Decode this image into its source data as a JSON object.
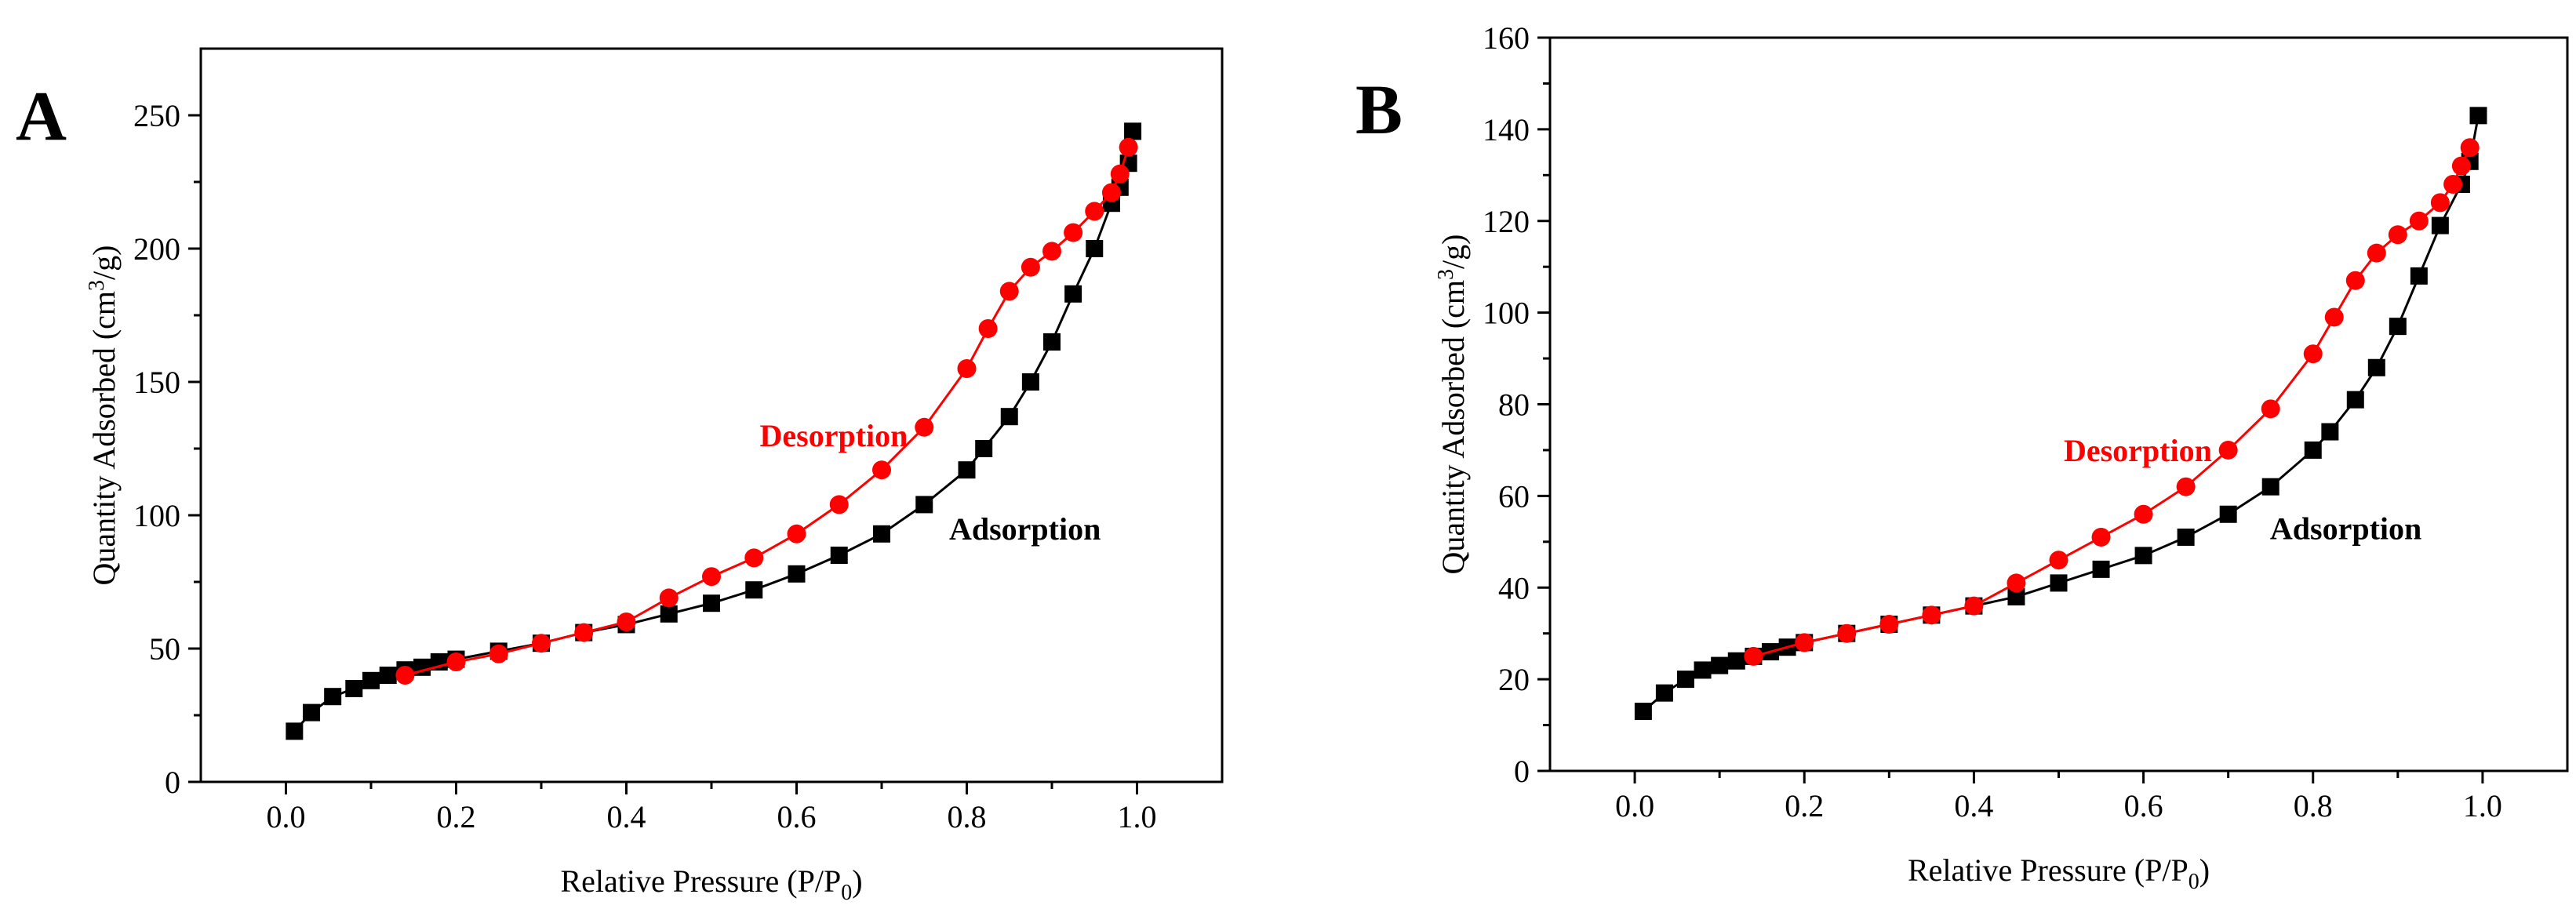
{
  "figure": {
    "panels": [
      "A",
      "B"
    ]
  },
  "chart_data": [
    {
      "type": "line",
      "panel_label": "A",
      "title": "",
      "xlabel": "Relative Pressure (P/P",
      "xlabel_subscript": "0",
      "xlabel_suffix": ")",
      "ylabel": "Quantity Adsorbed (cm",
      "ylabel_superscript": "3",
      "ylabel_suffix": "/g)",
      "xlim": [
        -0.1,
        1.1
      ],
      "ylim": [
        0,
        275
      ],
      "xticks": [
        0.0,
        0.2,
        0.4,
        0.6,
        0.8,
        1.0
      ],
      "xtick_labels": [
        "0.0",
        "0.2",
        "0.4",
        "0.6",
        "0.8",
        "1.0"
      ],
      "yticks": [
        0,
        50,
        100,
        150,
        200,
        250
      ],
      "ytick_labels": [
        "0",
        "50",
        "100",
        "150",
        "200",
        "250"
      ],
      "grid": false,
      "series": [
        {
          "name": "Adsorption",
          "color": "#000000",
          "marker": "square",
          "x": [
            0.01,
            0.03,
            0.055,
            0.08,
            0.1,
            0.12,
            0.14,
            0.16,
            0.18,
            0.2,
            0.25,
            0.3,
            0.35,
            0.4,
            0.45,
            0.5,
            0.55,
            0.6,
            0.65,
            0.7,
            0.75,
            0.8,
            0.82,
            0.85,
            0.875,
            0.9,
            0.925,
            0.95,
            0.97,
            0.98,
            0.99,
            0.995
          ],
          "y": [
            19,
            26,
            32,
            35,
            38,
            40,
            42,
            43,
            45,
            46,
            49,
            52,
            56,
            59,
            63,
            67,
            72,
            78,
            85,
            93,
            104,
            117,
            125,
            137,
            150,
            165,
            183,
            200,
            217,
            223,
            232,
            244
          ]
        },
        {
          "name": "Desorption",
          "color": "#ff0000",
          "marker": "circle",
          "x": [
            0.14,
            0.2,
            0.25,
            0.3,
            0.35,
            0.4,
            0.45,
            0.5,
            0.55,
            0.6,
            0.65,
            0.7,
            0.75,
            0.8,
            0.825,
            0.85,
            0.875,
            0.9,
            0.925,
            0.95,
            0.97,
            0.98,
            0.99
          ],
          "y": [
            40,
            45,
            48,
            52,
            56,
            60,
            69,
            77,
            84,
            93,
            104,
            117,
            133,
            155,
            170,
            184,
            193,
            199,
            206,
            214,
            221,
            228,
            238
          ]
        }
      ],
      "annotations": [
        {
          "text": "Desorption",
          "x": 0.74,
          "y": 130,
          "anchor": "end",
          "color": "#ff0000"
        },
        {
          "text": "Adsorption",
          "x": 0.77,
          "y": 95,
          "anchor": "start",
          "color": "#000000"
        }
      ]
    },
    {
      "type": "line",
      "panel_label": "B",
      "title": "",
      "xlabel": "Relative Pressure (P/P",
      "xlabel_subscript": "0",
      "xlabel_suffix": ")",
      "ylabel": "Quantity Adsorbed (cm",
      "ylabel_superscript": "3",
      "ylabel_suffix": "/g)",
      "xlim": [
        -0.1,
        1.1
      ],
      "ylim": [
        0,
        160
      ],
      "xticks": [
        0.0,
        0.2,
        0.4,
        0.6,
        0.8,
        1.0
      ],
      "xtick_labels": [
        "0.0",
        "0.2",
        "0.4",
        "0.6",
        "0.8",
        "1.0"
      ],
      "yticks": [
        0,
        20,
        40,
        60,
        80,
        100,
        120,
        140,
        160
      ],
      "ytick_labels": [
        "0",
        "20",
        "40",
        "60",
        "80",
        "100",
        "120",
        "140",
        "160"
      ],
      "grid": false,
      "series": [
        {
          "name": "Adsorption",
          "color": "#000000",
          "marker": "square",
          "x": [
            0.01,
            0.035,
            0.06,
            0.08,
            0.1,
            0.12,
            0.14,
            0.16,
            0.18,
            0.2,
            0.25,
            0.3,
            0.35,
            0.4,
            0.45,
            0.5,
            0.55,
            0.6,
            0.65,
            0.7,
            0.75,
            0.8,
            0.82,
            0.85,
            0.875,
            0.9,
            0.925,
            0.95,
            0.975,
            0.985,
            0.995
          ],
          "y": [
            13,
            17,
            20,
            22,
            23,
            24,
            25,
            26,
            27,
            28,
            30,
            32,
            34,
            36,
            38,
            41,
            44,
            47,
            51,
            56,
            62,
            70,
            74,
            81,
            88,
            97,
            108,
            119,
            128,
            133,
            143
          ]
        },
        {
          "name": "Desorption",
          "color": "#ff0000",
          "marker": "circle",
          "x": [
            0.14,
            0.2,
            0.25,
            0.3,
            0.35,
            0.4,
            0.45,
            0.5,
            0.55,
            0.6,
            0.65,
            0.7,
            0.75,
            0.8,
            0.825,
            0.85,
            0.875,
            0.9,
            0.925,
            0.95,
            0.965,
            0.975,
            0.985
          ],
          "y": [
            25,
            28,
            30,
            32,
            34,
            36,
            41,
            46,
            51,
            56,
            62,
            70,
            79,
            91,
            99,
            107,
            113,
            117,
            120,
            124,
            128,
            132,
            136
          ]
        }
      ],
      "annotations": [
        {
          "text": "Desorption",
          "x": 0.69,
          "y": 70,
          "anchor": "end",
          "color": "#ff0000"
        },
        {
          "text": "Adsorption",
          "x": 0.74,
          "y": 53,
          "anchor": "start",
          "color": "#000000"
        }
      ]
    }
  ]
}
